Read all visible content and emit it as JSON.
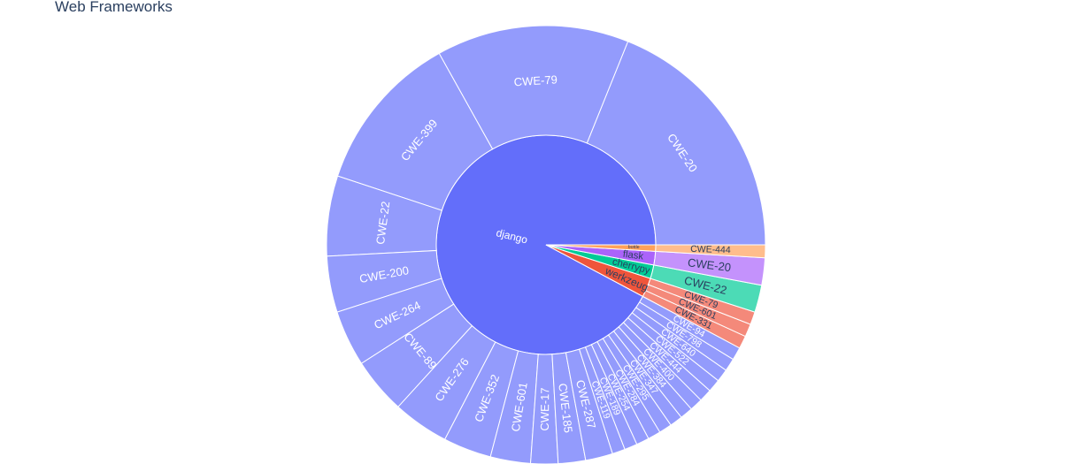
{
  "chart_data": {
    "type": "sunburst",
    "title": "Web Frameworks",
    "colors": {
      "django": "#636efa",
      "django_child": "#939bfc",
      "werkzeug": "#ef553b",
      "werkzeug_child": "#f4897a",
      "cherrypy": "#00cc96",
      "cherrypy_child": "#4cdbb6",
      "flask": "#ab63fa",
      "flask_child": "#c492fc",
      "bottle": "#ffa15a",
      "bottle_child": "#ffbd8c"
    },
    "parents": [
      {
        "name": "django",
        "color_key": "django",
        "children": [
          {
            "label": "CWE-20",
            "value": 160
          },
          {
            "label": "CWE-79",
            "value": 120
          },
          {
            "label": "CWE-399",
            "value": 100
          },
          {
            "label": "CWE-22",
            "value": 50
          },
          {
            "label": "CWE-200",
            "value": 35
          },
          {
            "label": "CWE-264",
            "value": 35
          },
          {
            "label": "CWE-89",
            "value": 35
          },
          {
            "label": "CWE-276",
            "value": 35
          },
          {
            "label": "CWE-352",
            "value": 30
          },
          {
            "label": "CWE-601",
            "value": 25
          },
          {
            "label": "CWE-17",
            "value": 17
          },
          {
            "label": "CWE-185",
            "value": 17
          },
          {
            "label": "CWE-287",
            "value": 17
          },
          {
            "label": "CWE-119",
            "value": 8
          },
          {
            "label": "CWE-189",
            "value": 8
          },
          {
            "label": "CWE-254",
            "value": 8
          },
          {
            "label": "CWE-284",
            "value": 8
          },
          {
            "label": "CWE-295",
            "value": 8
          },
          {
            "label": "CWE-347",
            "value": 8
          },
          {
            "label": "CWE-384",
            "value": 8
          },
          {
            "label": "CWE-400",
            "value": 8
          },
          {
            "label": "CWE-444",
            "value": 8
          },
          {
            "label": "CWE-522",
            "value": 8
          },
          {
            "label": "CWE-640",
            "value": 8
          },
          {
            "label": "CWE-798",
            "value": 8
          },
          {
            "label": "CWE-94",
            "value": 8
          }
        ]
      },
      {
        "name": "werkzeug",
        "color_key": "werkzeug",
        "children": [
          {
            "label": "CWE-331",
            "value": 8
          },
          {
            "label": "CWE-601",
            "value": 8
          },
          {
            "label": "CWE-79",
            "value": 8
          }
        ]
      },
      {
        "name": "cherrypy",
        "color_key": "cherrypy",
        "children": [
          {
            "label": "CWE-22",
            "value": 17
          }
        ]
      },
      {
        "name": "flask",
        "color_key": "flask",
        "children": [
          {
            "label": "CWE-20",
            "value": 17
          }
        ]
      },
      {
        "name": "bottle",
        "color_key": "bottle",
        "children": [
          {
            "label": "CWE-444",
            "value": 8
          }
        ]
      }
    ]
  }
}
